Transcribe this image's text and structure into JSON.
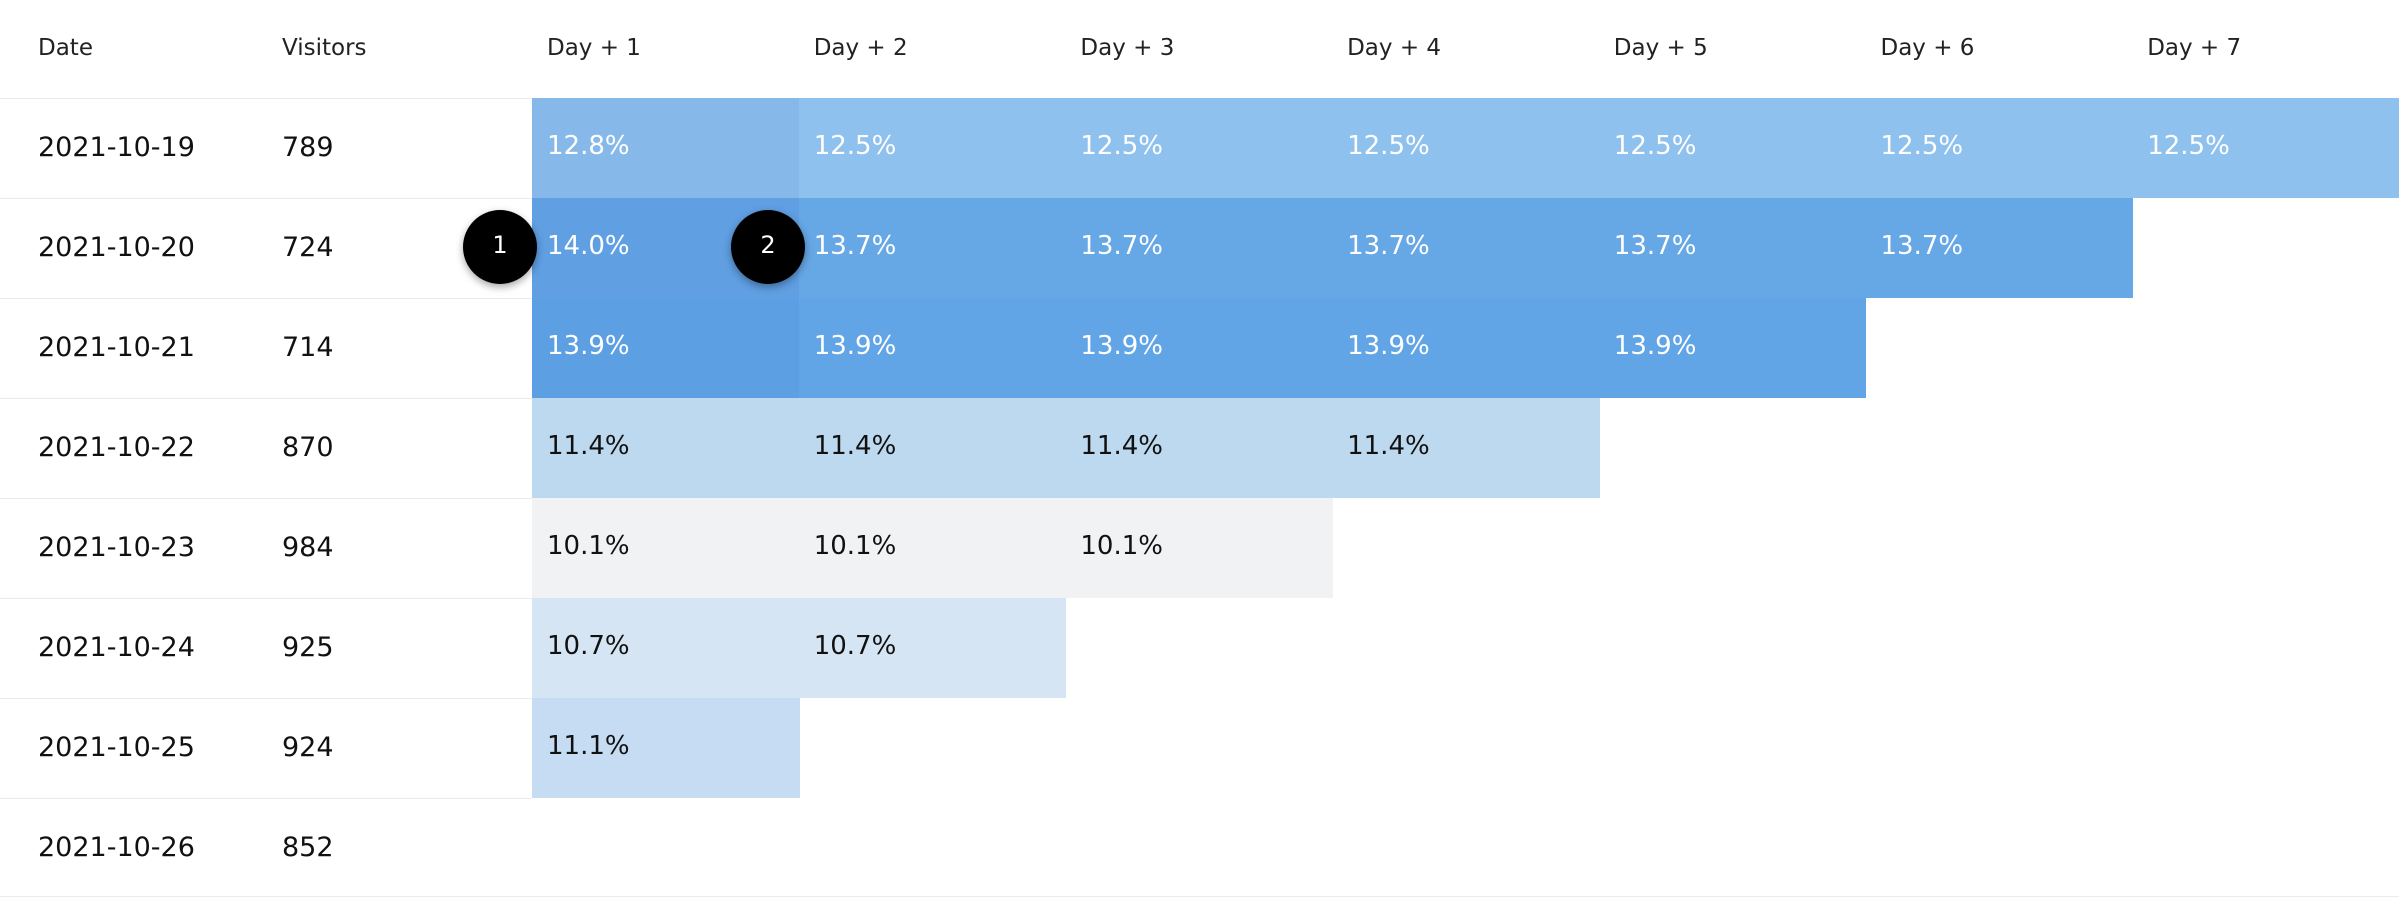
{
  "table": {
    "columns": [
      "Date",
      "Visitors",
      "Day + 1",
      "Day + 2",
      "Day + 3",
      "Day + 4",
      "Day + 5",
      "Day + 6",
      "Day + 7"
    ],
    "rows": [
      {
        "date": "2021-10-19",
        "visitors": "789",
        "cells": [
          "12.8%",
          "12.5%",
          "12.5%",
          "12.5%",
          "12.5%",
          "12.5%",
          "12.5%"
        ]
      },
      {
        "date": "2021-10-20",
        "visitors": "724",
        "cells": [
          "14.0%",
          "13.7%",
          "13.7%",
          "13.7%",
          "13.7%",
          "13.7%"
        ]
      },
      {
        "date": "2021-10-21",
        "visitors": "714",
        "cells": [
          "13.9%",
          "13.9%",
          "13.9%",
          "13.9%",
          "13.9%"
        ]
      },
      {
        "date": "2021-10-22",
        "visitors": "870",
        "cells": [
          "11.4%",
          "11.4%",
          "11.4%",
          "11.4%"
        ]
      },
      {
        "date": "2021-10-23",
        "visitors": "984",
        "cells": [
          "10.1%",
          "10.1%",
          "10.1%"
        ]
      },
      {
        "date": "2021-10-24",
        "visitors": "925",
        "cells": [
          "10.7%",
          "10.7%"
        ]
      },
      {
        "date": "2021-10-25",
        "visitors": "924",
        "cells": [
          "11.1%"
        ]
      },
      {
        "date": "2021-10-26",
        "visitors": "852",
        "cells": []
      }
    ]
  },
  "annotations": [
    "1",
    "2"
  ]
}
